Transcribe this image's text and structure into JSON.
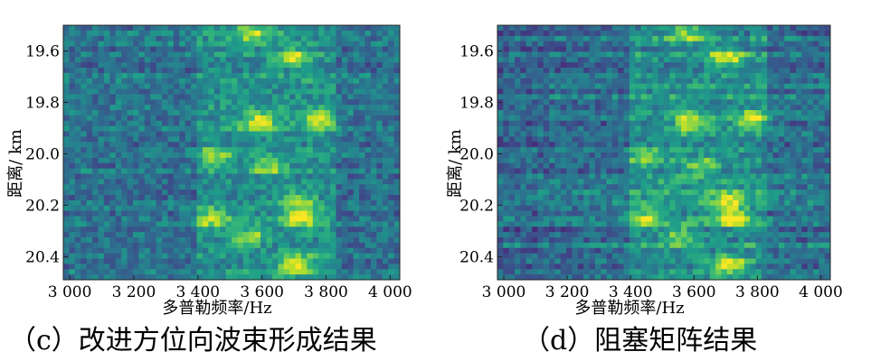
{
  "chart_data": [
    {
      "panel": "c",
      "type": "heatmap",
      "title": "",
      "xlabel": "多普勒频率/Hz",
      "ylabel": "距离/ km",
      "xlim": [
        2980,
        4030
      ],
      "ylim": [
        20.49,
        19.5
      ],
      "x_ticks": [
        "3 000",
        "3 200",
        "3 400",
        "3 600",
        "3 800",
        "4 000"
      ],
      "x_tick_values": [
        3000,
        3200,
        3400,
        3600,
        3800,
        4000
      ],
      "y_ticks": [
        "19.6",
        "19.8",
        "20.0",
        "20.2",
        "20.4"
      ],
      "y_tick_values": [
        19.6,
        19.8,
        20.0,
        20.2,
        20.4
      ],
      "colormap": "viridis",
      "grid": false,
      "caption": "（c）改进方位向波束形成结果",
      "hotspots": [
        {
          "x": 3570,
          "y": 19.53,
          "level": 0.8
        },
        {
          "x": 3700,
          "y": 19.63,
          "level": 0.85
        },
        {
          "x": 3590,
          "y": 19.88,
          "level": 0.95
        },
        {
          "x": 3780,
          "y": 19.87,
          "level": 0.9
        },
        {
          "x": 3450,
          "y": 20.01,
          "level": 0.65
        },
        {
          "x": 3710,
          "y": 20.18,
          "level": 0.75
        },
        {
          "x": 3440,
          "y": 20.25,
          "level": 0.8
        },
        {
          "x": 3720,
          "y": 20.25,
          "level": 0.9
        },
        {
          "x": 3710,
          "y": 20.43,
          "level": 1.0
        },
        {
          "x": 3560,
          "y": 20.32,
          "level": 0.7
        },
        {
          "x": 3620,
          "y": 20.05,
          "level": 0.65
        }
      ]
    },
    {
      "panel": "d",
      "type": "heatmap",
      "title": "",
      "xlabel": "多普勒频率/Hz",
      "ylabel": "距离/ km",
      "xlim": [
        2980,
        4030
      ],
      "ylim": [
        20.49,
        19.5
      ],
      "x_ticks": [
        "3 000",
        "3 200",
        "3 400",
        "3 600",
        "3 800",
        "4 000"
      ],
      "x_tick_values": [
        3000,
        3200,
        3400,
        3600,
        3800,
        4000
      ],
      "y_ticks": [
        "19.6",
        "19.8",
        "20.0",
        "20.2",
        "20.4"
      ],
      "y_tick_values": [
        19.6,
        19.8,
        20.0,
        20.2,
        20.4
      ],
      "colormap": "viridis",
      "grid": false,
      "caption": "（d）阻塞矩阵结果",
      "hotspots": [
        {
          "x": 3570,
          "y": 19.53,
          "level": 0.8
        },
        {
          "x": 3700,
          "y": 19.63,
          "level": 0.85
        },
        {
          "x": 3590,
          "y": 19.88,
          "level": 0.95
        },
        {
          "x": 3780,
          "y": 19.87,
          "level": 0.9
        },
        {
          "x": 3450,
          "y": 20.01,
          "level": 0.65
        },
        {
          "x": 3710,
          "y": 20.18,
          "level": 0.75
        },
        {
          "x": 3440,
          "y": 20.25,
          "level": 0.8
        },
        {
          "x": 3720,
          "y": 20.25,
          "level": 0.9
        },
        {
          "x": 3710,
          "y": 20.43,
          "level": 1.0
        },
        {
          "x": 3560,
          "y": 20.32,
          "level": 0.7
        },
        {
          "x": 3620,
          "y": 20.05,
          "level": 0.65
        }
      ]
    }
  ]
}
